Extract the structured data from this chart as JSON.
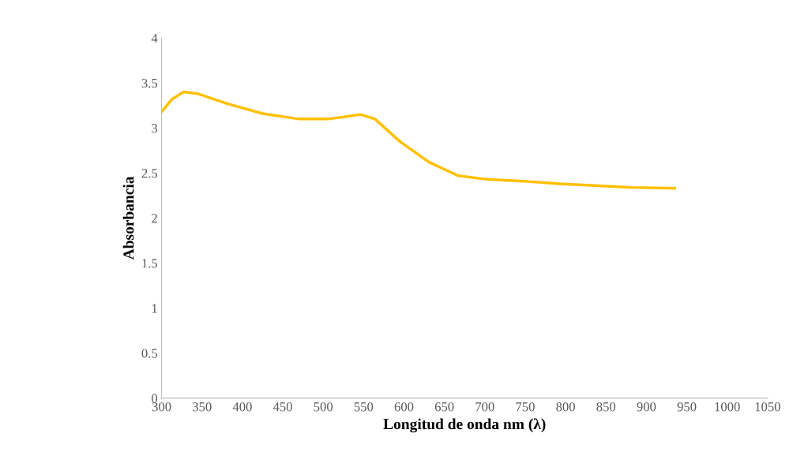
{
  "chart_data": {
    "type": "line",
    "xlabel": "Longitud de onda nm (λ)",
    "ylabel": "Absorbancia",
    "x": [
      300,
      313,
      327,
      345,
      381,
      425,
      470,
      506,
      524,
      546,
      564,
      595,
      631,
      667,
      702,
      747,
      792,
      836,
      881,
      935
    ],
    "series": [
      {
        "color": "#ffc000",
        "values": [
          3.18,
          3.32,
          3.4,
          3.38,
          3.27,
          3.16,
          3.1,
          3.1,
          3.12,
          3.15,
          3.1,
          2.85,
          2.62,
          2.47,
          2.43,
          2.41,
          2.38,
          2.36,
          2.34,
          2.33
        ]
      }
    ],
    "xlim": [
      300,
      1050
    ],
    "xticks": [
      300,
      350,
      400,
      450,
      500,
      550,
      600,
      650,
      700,
      750,
      800,
      850,
      900,
      950,
      1000,
      1050
    ],
    "ylim": [
      0,
      4
    ],
    "yticks": [
      0,
      0.5,
      1,
      1.5,
      2,
      2.5,
      3,
      3.5,
      4
    ],
    "grid": false,
    "marker": "none",
    "line_style": "solid",
    "legend": false
  }
}
